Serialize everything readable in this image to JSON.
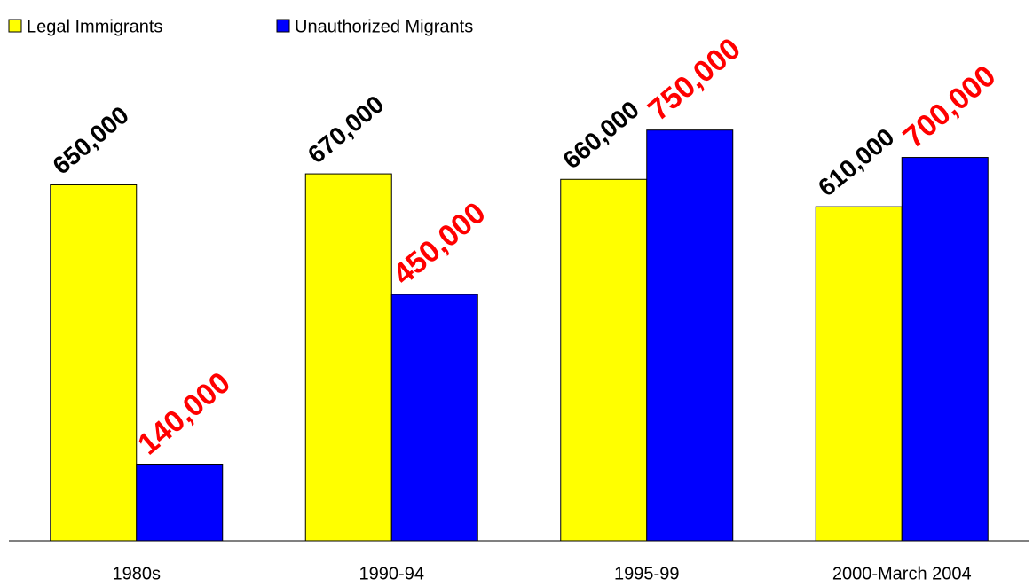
{
  "chart_data": {
    "type": "bar",
    "categories": [
      "1980s",
      "1990-94",
      "1995-99",
      "2000-March 2004"
    ],
    "series": [
      {
        "name": "Legal Immigrants",
        "color": "#ffff00",
        "label_color": "#000000",
        "values": [
          650000,
          670000,
          660000,
          610000
        ],
        "value_labels": [
          "650,000",
          "670,000",
          "660,000",
          "610,000"
        ]
      },
      {
        "name": "Unauthorized Migrants",
        "color": "#0000ff",
        "label_color": "#ff0000",
        "values": [
          140000,
          450000,
          750000,
          700000
        ],
        "value_labels": [
          "140,000",
          "450,000",
          "750,000",
          "700,000"
        ]
      }
    ],
    "ylim": [
      0,
      900000
    ],
    "legend": "top-left"
  }
}
